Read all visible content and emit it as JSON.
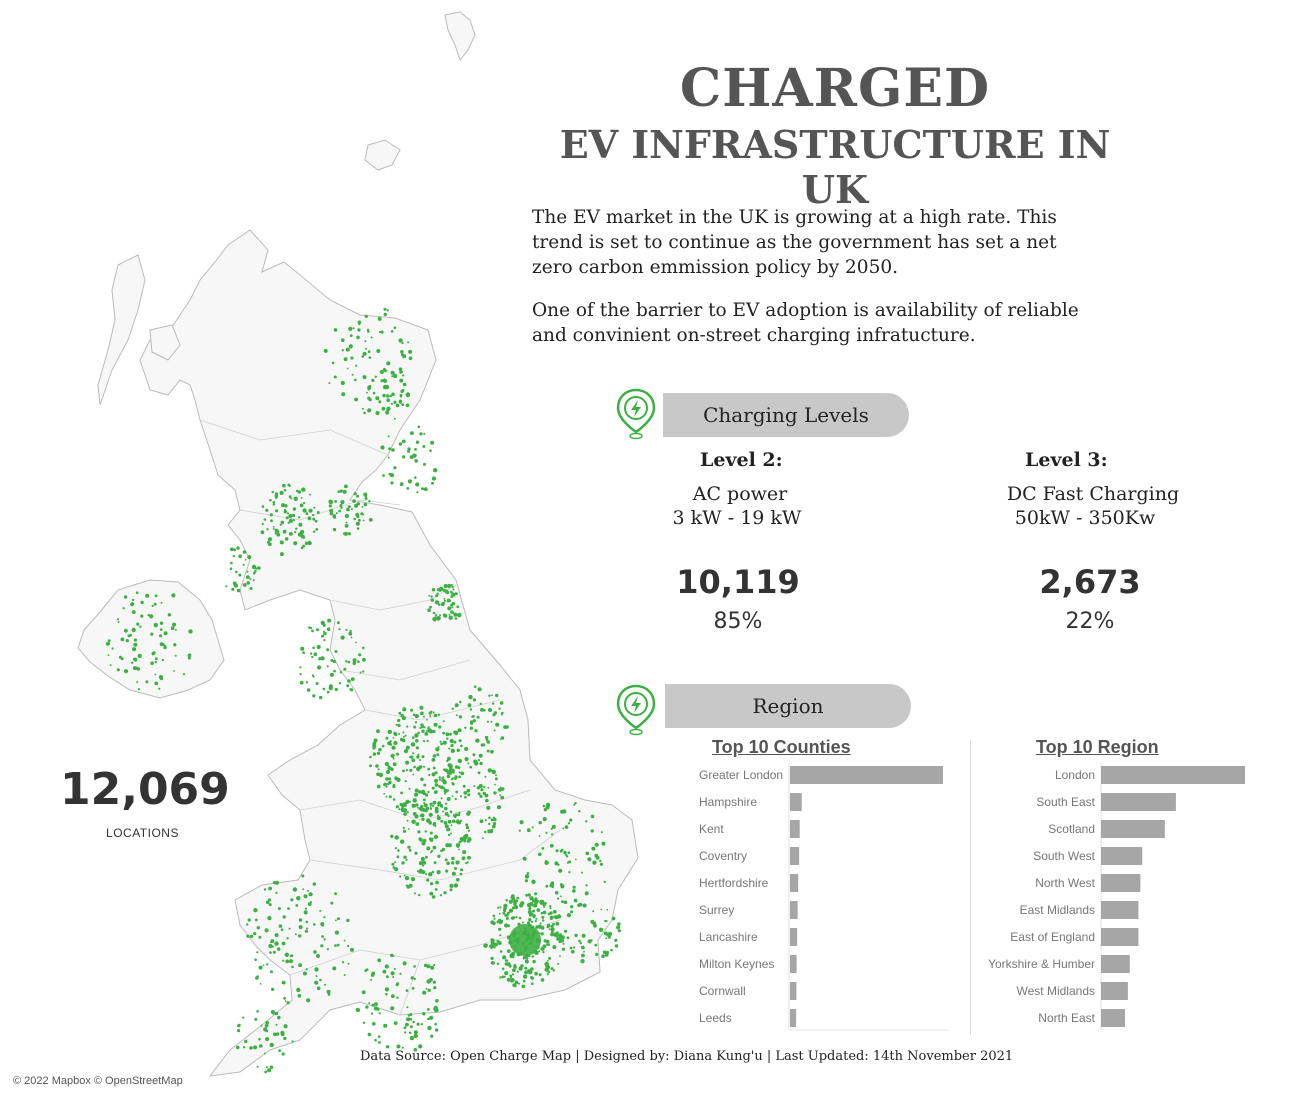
{
  "header": {
    "title": "CHARGED",
    "subtitle": "EV INFRASTRUCTURE IN UK"
  },
  "intro": {
    "paragraph_1": "The EV market in the UK is growing at a high rate. This trend is set to continue as the government has set a net zero carbon emmission policy by 2050.",
    "paragraph_2": "One of the barrier to EV adoption is availability of reliable and convinient on-street charging infratucture."
  },
  "charging_levels": {
    "section_label": "Charging Levels",
    "icon": "charging-pin-icon",
    "level2": {
      "heading": "Level 2:",
      "type": "AC power",
      "power": "3 kW - 19 kW",
      "count": "10,119",
      "percent": "85%"
    },
    "level3": {
      "heading": "Level 3:",
      "type": "DC Fast Charging",
      "power": "50kW - 350Kw",
      "count": "2,673",
      "percent": "22%"
    }
  },
  "region_section": {
    "section_label": "Region",
    "icon": "charging-pin-icon"
  },
  "locations": {
    "value": "12,069",
    "label": "LOCATIONS"
  },
  "map": {
    "marker_color": "#3cb043",
    "land_color": "#f7f7f7",
    "border_color": "#cccccc"
  },
  "footer": {
    "source": "Data Source: Open Charge Map | Designed by: Diana Kung'u | Last Updated: 14th November 2021",
    "credit": "© 2022 Mapbox © OpenStreetMap"
  },
  "colors": {
    "bar": "#a6a6a6",
    "title_text": "#555555",
    "accent_green": "#3cb043"
  },
  "chart_data": [
    {
      "type": "bar",
      "orientation": "horizontal",
      "title": "Top 10 Counties",
      "categories": [
        "Greater London",
        "Hampshire",
        "Kent",
        "Coventry",
        "Hertfordshire",
        "Surrey",
        "Lancashire",
        "Milton Keynes",
        "Cornwall",
        "Leeds"
      ],
      "values": [
        3000,
        230,
        190,
        180,
        160,
        150,
        140,
        130,
        125,
        120
      ],
      "xlim": [
        0,
        3000
      ]
    },
    {
      "type": "bar",
      "orientation": "horizontal",
      "title": "Top 10 Region",
      "categories": [
        "London",
        "South East",
        "Scotland",
        "South West",
        "North West",
        "East Midlands",
        "East of England",
        "Yorkshire & Humber",
        "West Midlands",
        "North East"
      ],
      "values": [
        3000,
        1560,
        1330,
        860,
        820,
        780,
        780,
        600,
        560,
        500
      ],
      "xlim": [
        0,
        3000
      ]
    }
  ]
}
